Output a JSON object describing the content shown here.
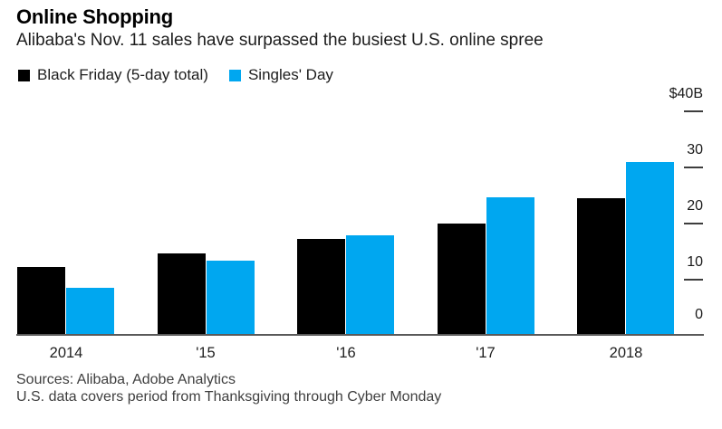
{
  "header": {
    "title": "Online Shopping",
    "subtitle": "Alibaba's Nov. 11 sales have surpassed the busiest U.S. online spree"
  },
  "chart_data": {
    "type": "bar",
    "title": "Online Shopping",
    "subtitle": "Alibaba's Nov. 11 sales have surpassed the busiest U.S. online spree",
    "categories": [
      "2014",
      "'15",
      "'16",
      "'17",
      "2018"
    ],
    "series": [
      {
        "name": "Black Friday (5-day total)",
        "color": "#000000",
        "values": [
          12.0,
          14.3,
          17.0,
          19.6,
          24.2
        ]
      },
      {
        "name": "Singles' Day",
        "color": "#00a7f0",
        "values": [
          8.2,
          13.0,
          17.5,
          24.3,
          30.7
        ]
      }
    ],
    "unit": "$B",
    "ylim": [
      0,
      40
    ],
    "y_ticks": [
      {
        "value": 40,
        "label": "$40B"
      },
      {
        "value": 30,
        "label": "30"
      },
      {
        "value": 20,
        "label": "20"
      },
      {
        "value": 10,
        "label": "10"
      },
      {
        "value": 0,
        "label": "0"
      }
    ],
    "legend_position": "top-left",
    "axis_side": "right",
    "grid": false
  },
  "footer": {
    "line1": "Sources: Alibaba, Adobe Analytics",
    "line2": "U.S. data covers period from Thanksgiving through Cyber Monday"
  },
  "colors": {
    "bar_black": "#000000",
    "bar_blue": "#00a7f0",
    "axis_line": "#5a5a5a",
    "tick_dash": "#3d3d3d",
    "text_primary": "#000000",
    "text_secondary": "#3f3f3f"
  }
}
